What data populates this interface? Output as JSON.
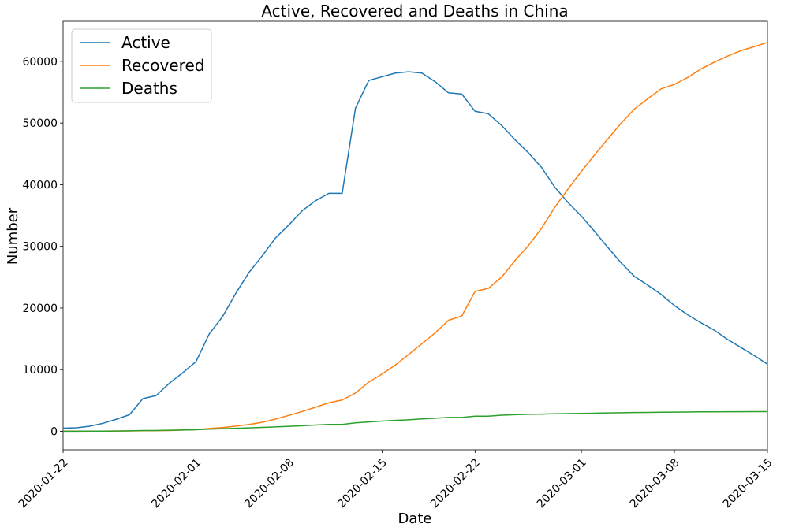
{
  "chart_data": {
    "type": "line",
    "title": "Active, Recovered and Deaths in  China",
    "xlabel": "Date",
    "ylabel": "Number",
    "x_start": "2020-01-22",
    "x_end": "2020-03-15",
    "xlim": [
      "2020-01-22",
      "2020-03-15"
    ],
    "ylim": [
      -3000,
      66500
    ],
    "x_ticks": [
      "2020-01-22",
      "2020-02-01",
      "2020-02-08",
      "2020-02-15",
      "2020-02-22",
      "2020-03-01",
      "2020-03-08",
      "2020-03-15"
    ],
    "y_ticks": [
      0,
      10000,
      20000,
      30000,
      40000,
      50000,
      60000
    ],
    "grid": false,
    "legend_position": "top-left",
    "series": [
      {
        "name": "Active",
        "color": "#1f77b4",
        "values": [
          510,
          580,
          830,
          1300,
          1950,
          2700,
          5300,
          5800,
          7800,
          9500,
          11300,
          15800,
          18600,
          22400,
          25800,
          28500,
          31400,
          33500,
          35800,
          37400,
          38600,
          38600,
          52400,
          56900,
          57500,
          58100,
          58300,
          58100,
          56700,
          54900,
          54700,
          51900,
          51500,
          49600,
          47300,
          45200,
          42800,
          39600,
          37100,
          34900,
          32400,
          29800,
          27300,
          25100,
          23700,
          22200,
          20400,
          18900,
          17600,
          16400,
          14900,
          13600,
          12300,
          10900
        ]
      },
      {
        "name": "Recovered",
        "color": "#ff7f0e",
        "values": [
          28,
          30,
          36,
          39,
          49,
          58,
          101,
          120,
          135,
          214,
          275,
          463,
          614,
          843,
          1115,
          1476,
          1998,
          2595,
          3218,
          3918,
          4636,
          5082,
          6217,
          7977,
          9298,
          10755,
          12462,
          14206,
          15962,
          18014,
          18704,
          22699,
          23187,
          25015,
          27676,
          30084,
          32930,
          36329,
          39320,
          42162,
          44854,
          47450,
          50001,
          52292,
          53944,
          55539,
          56261,
          57388,
          58777,
          59864,
          60855,
          61737,
          62380,
          63073
        ]
      },
      {
        "name": "Deaths",
        "color": "#2ca02c",
        "values": [
          17,
          18,
          26,
          42,
          56,
          82,
          131,
          133,
          171,
          213,
          259,
          361,
          425,
          491,
          563,
          637,
          723,
          812,
          909,
          1017,
          1114,
          1118,
          1371,
          1523,
          1666,
          1770,
          1868,
          2007,
          2122,
          2247,
          2251,
          2458,
          2469,
          2629,
          2708,
          2770,
          2793,
          2838,
          2873,
          2915,
          2946,
          2984,
          3015,
          3045,
          3073,
          3099,
          3123,
          3140,
          3161,
          3172,
          3180,
          3185,
          3189,
          3199
        ]
      }
    ]
  }
}
